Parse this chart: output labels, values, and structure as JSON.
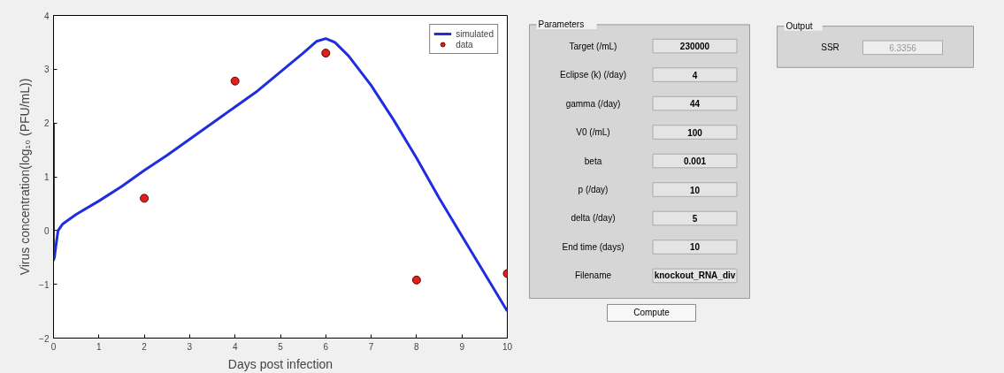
{
  "chart_data": [
    {
      "type": "line",
      "xlabel": "Days post infection",
      "ylabel": "Virus concentration(log₁₀ (PFU/mL))",
      "xlim": [
        0,
        10
      ],
      "ylim": [
        -2,
        4
      ],
      "xticks": [
        0,
        1,
        2,
        3,
        4,
        5,
        6,
        7,
        8,
        9,
        10
      ],
      "yticks": [
        -2,
        -1,
        0,
        1,
        2,
        3,
        4
      ],
      "grid": false,
      "legend": "top right",
      "series": [
        {
          "name": "simulated",
          "type": "line",
          "color": "#1f2de0",
          "line_style": "solid",
          "x": [
            0,
            0,
            0.02,
            0.05,
            0.1,
            0.2,
            0.5,
            1,
            1.5,
            2,
            2.5,
            3,
            3.5,
            4,
            4.5,
            5,
            5.5,
            5.8,
            6,
            6.2,
            6.5,
            7,
            7.5,
            8,
            8.5,
            9,
            9.5,
            10
          ],
          "values": [
            2,
            -0.55,
            -0.5,
            -0.3,
            0,
            0.12,
            0.3,
            0.55,
            0.82,
            1.12,
            1.4,
            1.7,
            2.0,
            2.3,
            2.6,
            2.95,
            3.3,
            3.52,
            3.57,
            3.5,
            3.25,
            2.7,
            2.05,
            1.35,
            0.6,
            -0.1,
            -0.8,
            -1.5
          ]
        },
        {
          "name": "data",
          "type": "scatter",
          "color": "#e0201b",
          "marker": "circle",
          "x": [
            2,
            4,
            6,
            8,
            10
          ],
          "values": [
            0.6,
            2.78,
            3.3,
            -0.92,
            -0.8
          ]
        }
      ]
    },
    {
      "type": "other",
      "title": "Parameters",
      "annotations": [
        "Target (/mL)",
        "230000",
        "Eclipse (k) (/day)",
        "4",
        "gamma (/day)",
        "44",
        "V0 (/mL)",
        "100",
        "beta",
        "0.001",
        "p (/day)",
        "10",
        "delta (/day)",
        "5",
        "End time (days)",
        "10",
        "Filename",
        "knockout_RNA_div",
        "Compute"
      ]
    },
    {
      "type": "other",
      "title": "Output",
      "annotations": [
        "SSR",
        "6.3356"
      ]
    }
  ]
}
